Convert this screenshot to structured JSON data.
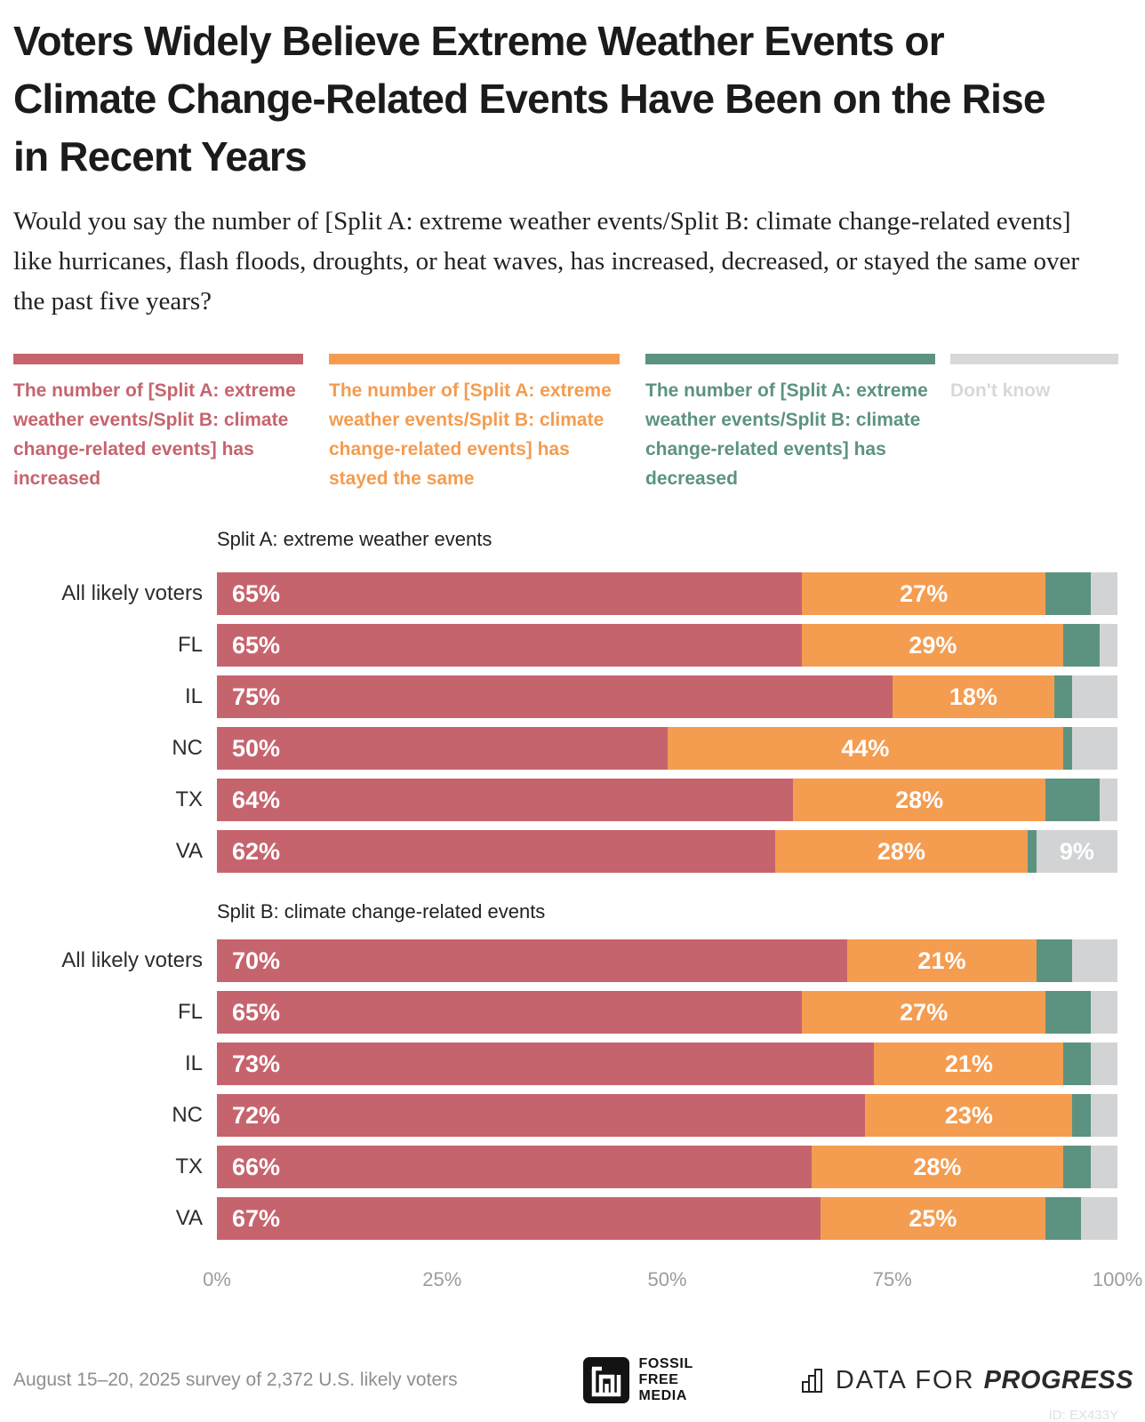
{
  "header": {
    "title": "Voters Widely Believe Extreme Weather Events or Climate Change-Related Events Have Been on the Rise in Recent Years",
    "subtitle": "Would you say the number of [Split A: extreme weather events/Split B: climate change-related events] like hurricanes, flash floods, droughts, or heat waves, has increased, decreased, or stayed the same over the past five years?"
  },
  "legend": {
    "items": [
      {
        "key": "increased",
        "label": "The number of [Split A: extreme weather events/Split B: climate change-related events] has increased",
        "color": "#C6646E"
      },
      {
        "key": "stayed_same",
        "label": "The number of [Split A: extreme weather events/Split B: climate change-related events] has stayed the same",
        "color": "#F49C50"
      },
      {
        "key": "decreased",
        "label": "The number of [Split A: extreme weather events/Split B: climate change-related events] has decreased",
        "color": "#5C9380"
      },
      {
        "key": "dont_know",
        "label": "Don't know",
        "color": "#D8D8D8"
      }
    ]
  },
  "chart_data": {
    "type": "bar",
    "stacked": true,
    "orientation": "horizontal",
    "unit": "%",
    "xlim": [
      0,
      100
    ],
    "x_ticks": [
      "0%",
      "25%",
      "50%",
      "75%",
      "100%"
    ],
    "colors": {
      "increased": "#C6646E",
      "stayed_same": "#F49C50",
      "decreased": "#5C9380",
      "dont_know": "#D2D3D5"
    },
    "groups": [
      {
        "title": "Split A: extreme weather events",
        "rows": [
          {
            "label": "All likely voters",
            "segments": [
              {
                "key": "increased",
                "value": 65,
                "label": "65%"
              },
              {
                "key": "stayed_same",
                "value": 27,
                "label": "27%"
              },
              {
                "key": "decreased",
                "value": 5
              },
              {
                "key": "dont_know",
                "value": 3
              }
            ]
          },
          {
            "label": "FL",
            "segments": [
              {
                "key": "increased",
                "value": 65,
                "label": "65%"
              },
              {
                "key": "stayed_same",
                "value": 29,
                "label": "29%"
              },
              {
                "key": "decreased",
                "value": 4
              },
              {
                "key": "dont_know",
                "value": 2
              }
            ]
          },
          {
            "label": "IL",
            "segments": [
              {
                "key": "increased",
                "value": 75,
                "label": "75%"
              },
              {
                "key": "stayed_same",
                "value": 18,
                "label": "18%"
              },
              {
                "key": "decreased",
                "value": 2
              },
              {
                "key": "dont_know",
                "value": 5
              }
            ]
          },
          {
            "label": "NC",
            "segments": [
              {
                "key": "increased",
                "value": 50,
                "label": "50%"
              },
              {
                "key": "stayed_same",
                "value": 44,
                "label": "44%"
              },
              {
                "key": "decreased",
                "value": 1
              },
              {
                "key": "dont_know",
                "value": 5
              }
            ]
          },
          {
            "label": "TX",
            "segments": [
              {
                "key": "increased",
                "value": 64,
                "label": "64%"
              },
              {
                "key": "stayed_same",
                "value": 28,
                "label": "28%"
              },
              {
                "key": "decreased",
                "value": 6
              },
              {
                "key": "dont_know",
                "value": 2
              }
            ]
          },
          {
            "label": "VA",
            "segments": [
              {
                "key": "increased",
                "value": 62,
                "label": "62%"
              },
              {
                "key": "stayed_same",
                "value": 28,
                "label": "28%"
              },
              {
                "key": "decreased",
                "value": 1
              },
              {
                "key": "dont_know",
                "value": 9,
                "label": "9%"
              }
            ]
          }
        ]
      },
      {
        "title": "Split B: climate change-related events",
        "rows": [
          {
            "label": "All likely voters",
            "segments": [
              {
                "key": "increased",
                "value": 70,
                "label": "70%"
              },
              {
                "key": "stayed_same",
                "value": 21,
                "label": "21%"
              },
              {
                "key": "decreased",
                "value": 4
              },
              {
                "key": "dont_know",
                "value": 5
              }
            ]
          },
          {
            "label": "FL",
            "segments": [
              {
                "key": "increased",
                "value": 65,
                "label": "65%"
              },
              {
                "key": "stayed_same",
                "value": 27,
                "label": "27%"
              },
              {
                "key": "decreased",
                "value": 5
              },
              {
                "key": "dont_know",
                "value": 3
              }
            ]
          },
          {
            "label": "IL",
            "segments": [
              {
                "key": "increased",
                "value": 73,
                "label": "73%"
              },
              {
                "key": "stayed_same",
                "value": 21,
                "label": "21%"
              },
              {
                "key": "decreased",
                "value": 3
              },
              {
                "key": "dont_know",
                "value": 3
              }
            ]
          },
          {
            "label": "NC",
            "segments": [
              {
                "key": "increased",
                "value": 72,
                "label": "72%"
              },
              {
                "key": "stayed_same",
                "value": 23,
                "label": "23%"
              },
              {
                "key": "decreased",
                "value": 2
              },
              {
                "key": "dont_know",
                "value": 3
              }
            ]
          },
          {
            "label": "TX",
            "segments": [
              {
                "key": "increased",
                "value": 66,
                "label": "66%"
              },
              {
                "key": "stayed_same",
                "value": 28,
                "label": "28%"
              },
              {
                "key": "decreased",
                "value": 3
              },
              {
                "key": "dont_know",
                "value": 3
              }
            ]
          },
          {
            "label": "VA",
            "segments": [
              {
                "key": "increased",
                "value": 67,
                "label": "67%"
              },
              {
                "key": "stayed_same",
                "value": 25,
                "label": "25%"
              },
              {
                "key": "decreased",
                "value": 4
              },
              {
                "key": "dont_know",
                "value": 4
              }
            ]
          }
        ]
      }
    ]
  },
  "footer": {
    "survey_note": "August 15–20, 2025 survey of 2,372 U.S. likely voters",
    "ffm_lines": [
      "FOSSIL",
      "FREE",
      "MEDIA"
    ],
    "dfp_light": "DATA FOR",
    "dfp_bold": "PROGRESS",
    "chart_id": "ID: EX433Y"
  }
}
